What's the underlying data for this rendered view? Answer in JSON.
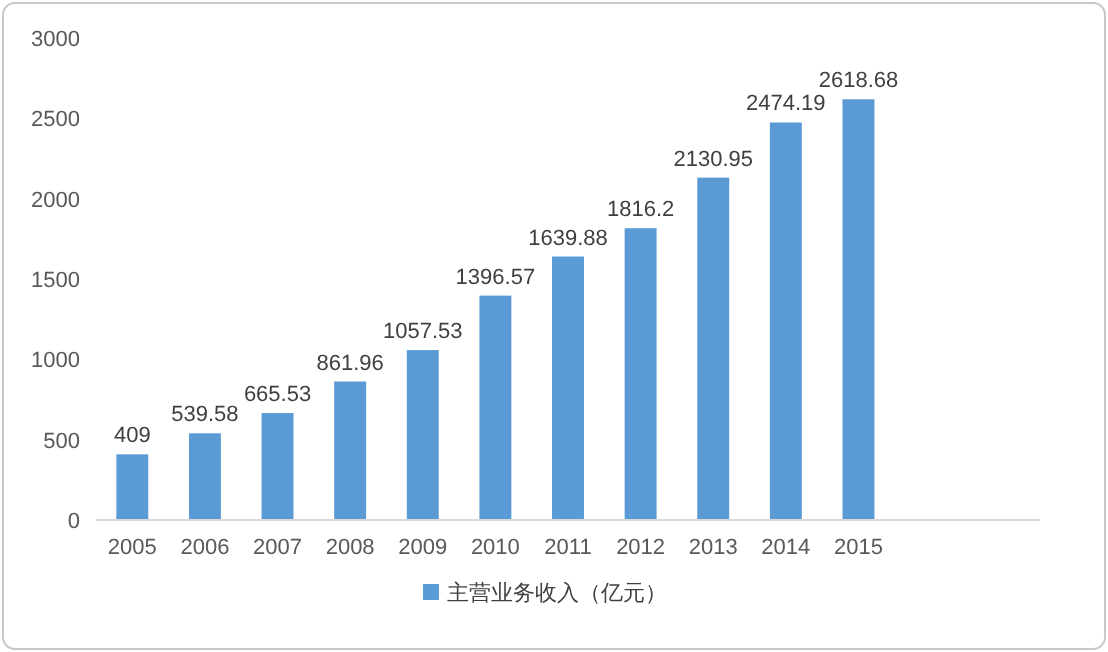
{
  "chart_data": {
    "type": "bar",
    "categories": [
      "2005",
      "2006",
      "2007",
      "2008",
      "2009",
      "2010",
      "2011",
      "2012",
      "2013",
      "2014",
      "2015",
      null,
      null
    ],
    "series": [
      {
        "name": "主营业务收入（亿元）",
        "color": "#5b9bd5",
        "values": [
          409,
          539.58,
          665.53,
          861.96,
          1057.53,
          1396.57,
          1639.88,
          1816.2,
          2130.95,
          2474.19,
          2618.68,
          null,
          null
        ]
      }
    ],
    "ylim": [
      0,
      3000
    ],
    "yticks": [
      0,
      500,
      1000,
      1500,
      2000,
      2500,
      3000
    ],
    "grid": false,
    "legend": "bottom",
    "data_labels": true
  }
}
